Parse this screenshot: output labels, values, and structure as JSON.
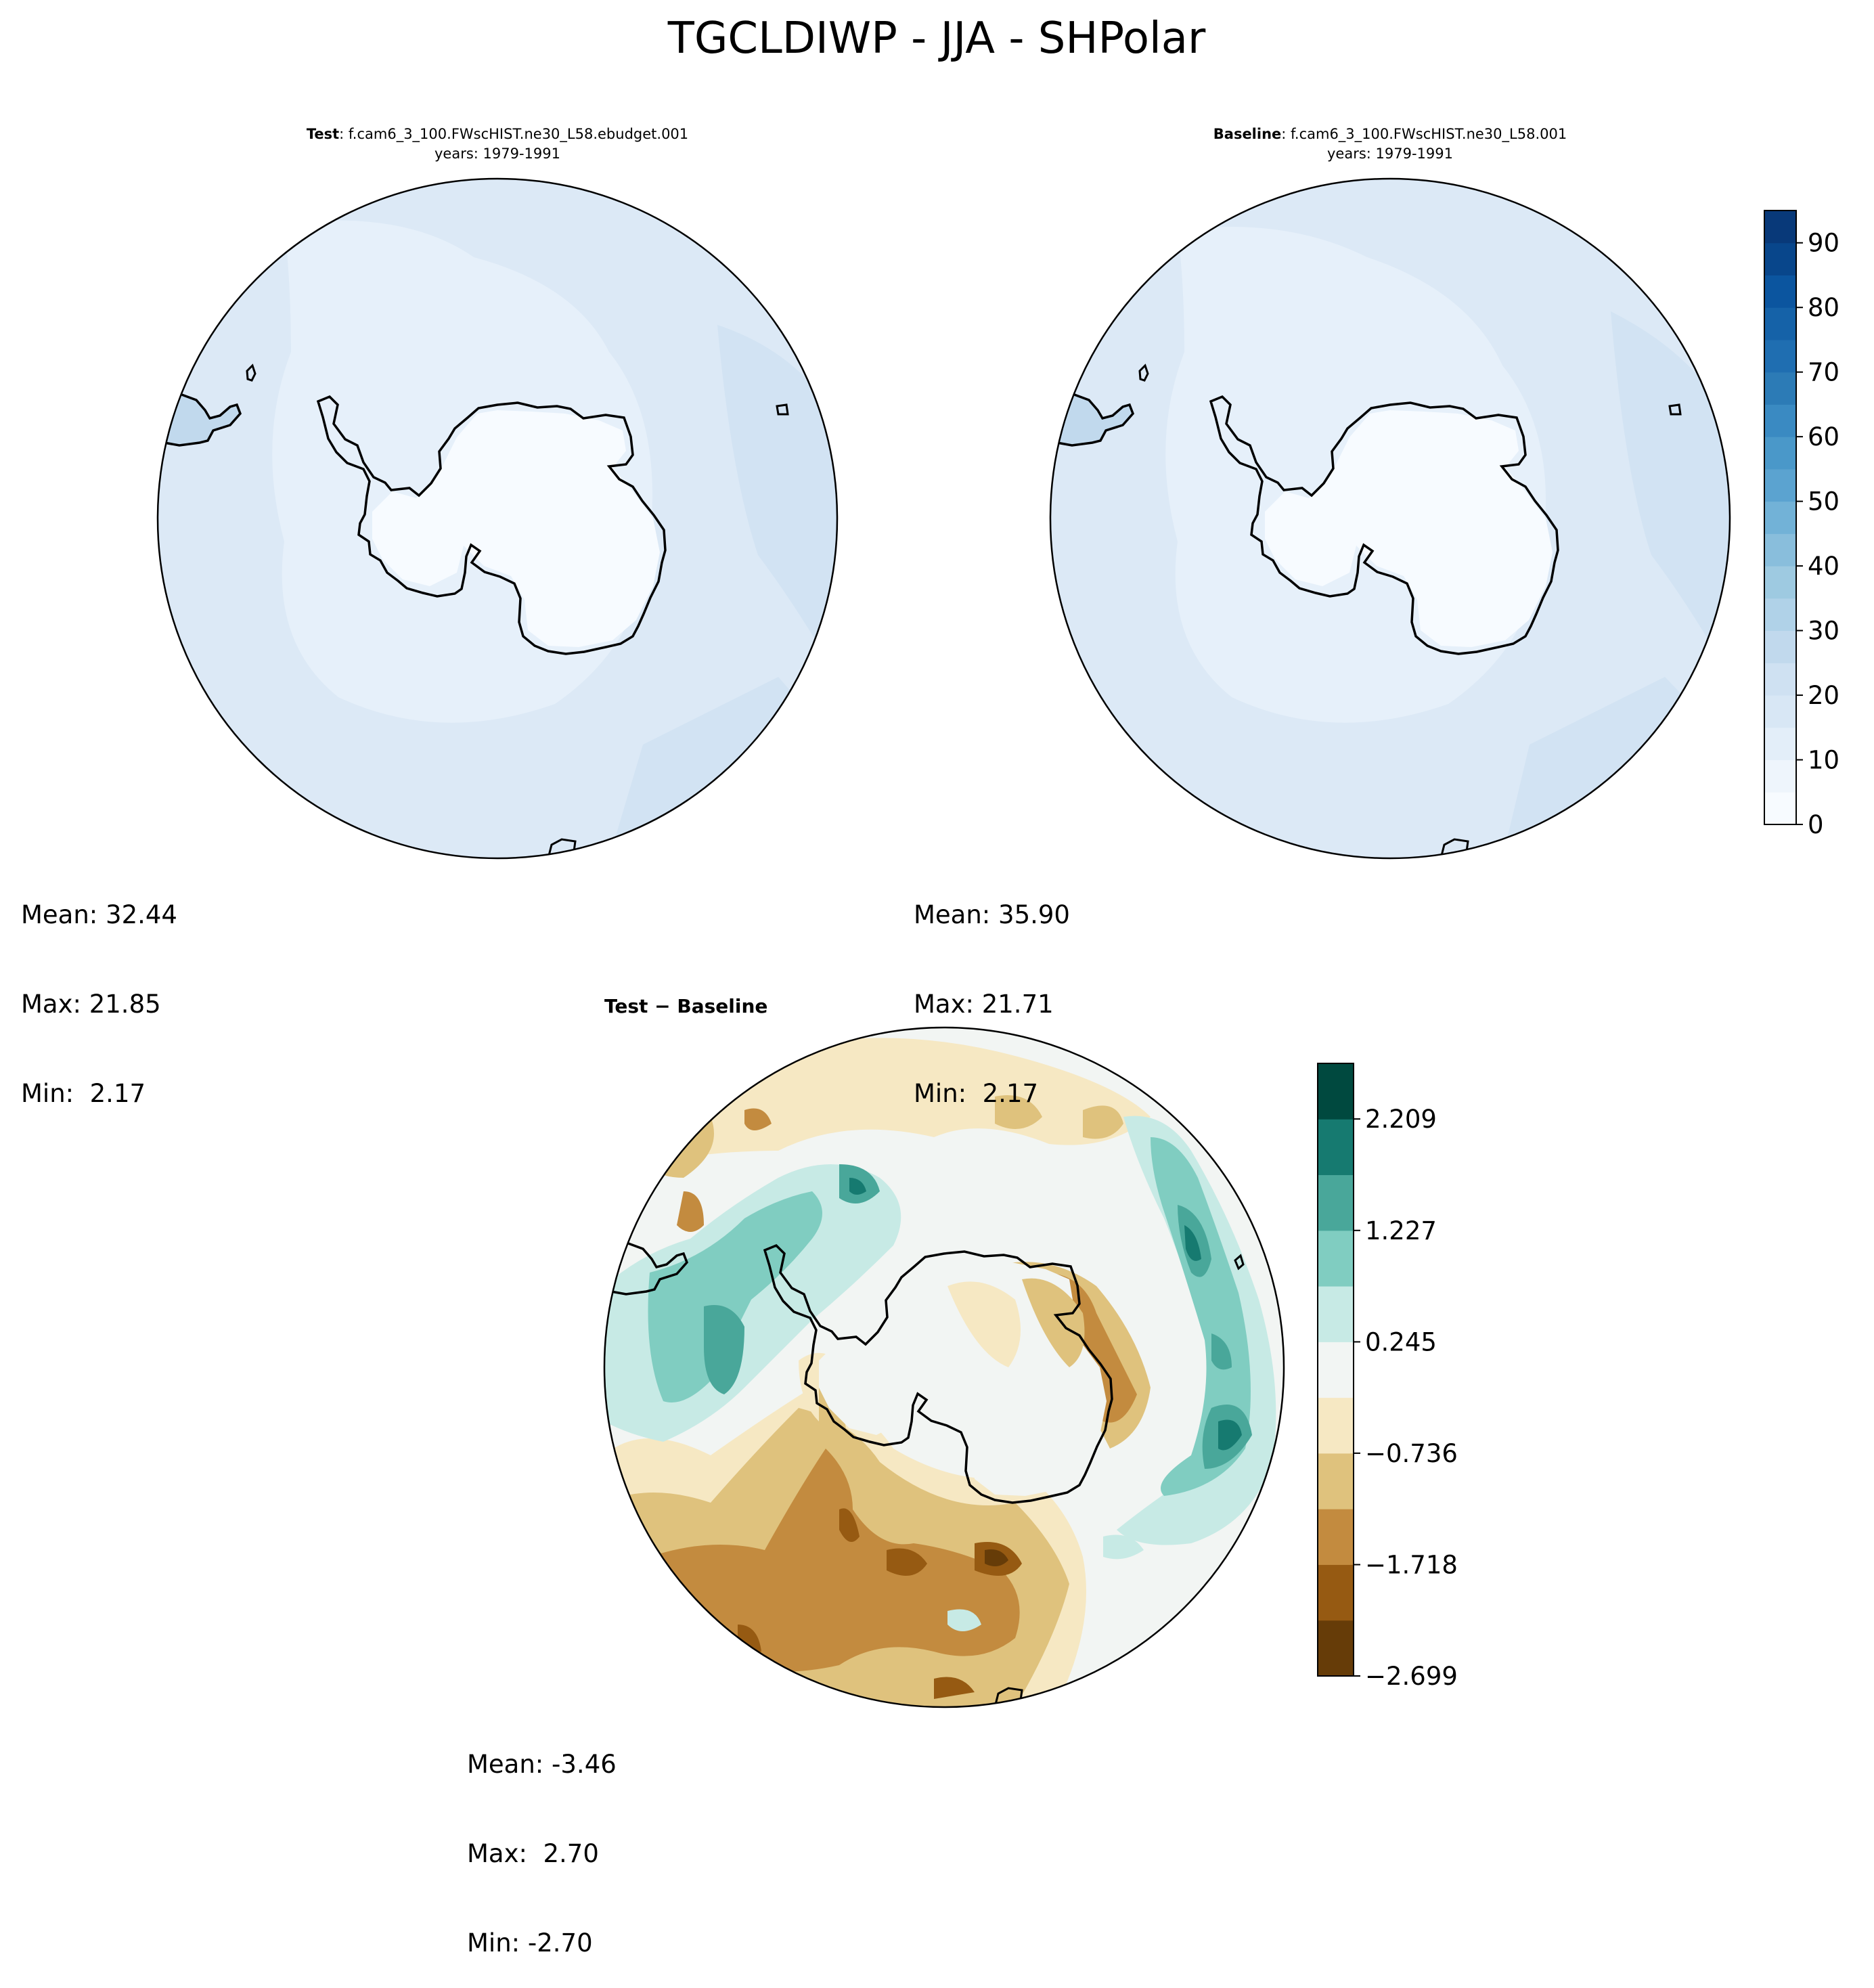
{
  "figure_title": "TGCLDIWP - JJA - SHPolar",
  "panels": {
    "test": {
      "label_bold": "Test",
      "case": ": f.cam6_3_100.FWscHIST.ne30_L58.ebudget.001",
      "years": "years: 1979-1991",
      "mean": "Mean: 32.44",
      "max": "Max: 21.85",
      "min": "Min:  2.17"
    },
    "baseline": {
      "label_bold": "Baseline",
      "case": ": f.cam6_3_100.FWscHIST.ne30_L58.001",
      "years": "years: 1979-1991",
      "mean": "Mean: 35.90",
      "max": "Max: 21.71",
      "min": "Min:  2.17"
    },
    "diff": {
      "title": "Test − Baseline",
      "mean": "Mean: -3.46",
      "max": "Max:  2.70",
      "min": "Min: -2.70"
    }
  },
  "colors": {
    "blues_levels": [
      "#f7fbff",
      "#eef5fc",
      "#e3eef9",
      "#d8e7f5",
      "#cfe1f2",
      "#c1d9ed",
      "#b0d2e8",
      "#9ecae1",
      "#89bedc",
      "#72b2d7",
      "#5ba3d0",
      "#4a98c9",
      "#3a8ac2",
      "#2c7bb6",
      "#1f6eb1",
      "#1562a8",
      "#0b559f",
      "#08468b",
      "#083979",
      "#08306b"
    ],
    "brbg_levels": [
      "#663c08",
      "#965a12",
      "#c38b3f",
      "#dfc27d",
      "#f6e8c3",
      "#f2f5f3",
      "#c7eae5",
      "#80cdc1",
      "#49a79a",
      "#167a70",
      "#00493f"
    ],
    "map_fill_light": "#e6f0fa",
    "map_fill_mid": "#dce9f6",
    "map_fill_darker": "#d2e3f3"
  },
  "colorbars": {
    "blues": {
      "ticks": [
        "0",
        "10",
        "20",
        "30",
        "40",
        "50",
        "60",
        "70",
        "80",
        "90"
      ],
      "tick_values": [
        0,
        10,
        20,
        30,
        40,
        50,
        60,
        70,
        80,
        90
      ],
      "range": [
        0,
        95
      ],
      "levels": [
        0,
        5,
        10,
        15,
        20,
        25,
        30,
        35,
        40,
        45,
        50,
        55,
        60,
        65,
        70,
        75,
        80,
        85,
        90,
        95
      ]
    },
    "brbg": {
      "ticks": [
        "2.209",
        "1.227",
        "0.245",
        "−0.736",
        "−1.718",
        "−2.699"
      ],
      "tick_values": [
        2.209,
        1.227,
        0.245,
        -0.736,
        -1.718,
        -2.699
      ],
      "range": [
        -2.699,
        2.699
      ]
    }
  },
  "chart_data": [
    {
      "type": "heatmap",
      "title": "Test : f.cam6_3_100.FWscHIST.ne30_L58.ebudget.001 years: 1979-1991",
      "projection": "south-polar-stereographic",
      "colormap": "Blues",
      "range": [
        0,
        95
      ],
      "stats": {
        "mean": 32.44,
        "max": 21.85,
        "min": 2.17
      }
    },
    {
      "type": "heatmap",
      "title": "Baseline : f.cam6_3_100.FWscHIST.ne30_L58.001 years: 1979-1991",
      "projection": "south-polar-stereographic",
      "colormap": "Blues",
      "range": [
        0,
        95
      ],
      "stats": {
        "mean": 35.9,
        "max": 21.71,
        "min": 2.17
      }
    },
    {
      "type": "heatmap",
      "title": "Test − Baseline",
      "projection": "south-polar-stereographic",
      "colormap": "BrBG",
      "range": [
        -2.699,
        2.699
      ],
      "stats": {
        "mean": -3.46,
        "max": 2.7,
        "min": -2.7
      }
    }
  ]
}
